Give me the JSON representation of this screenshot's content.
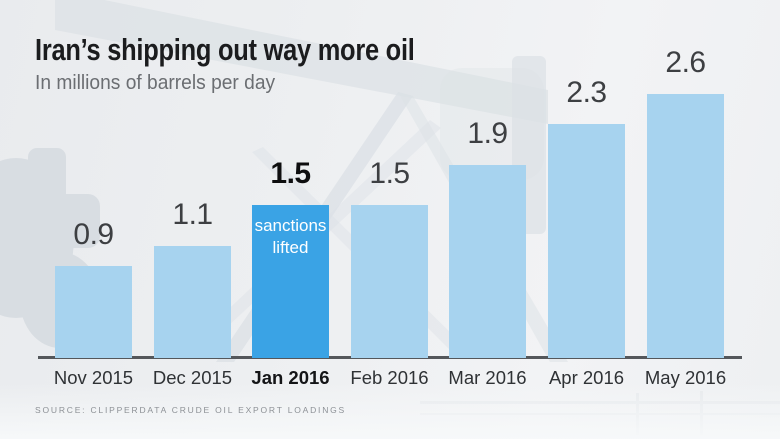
{
  "header": {
    "title": "Iran’s shipping out way more oil",
    "subtitle": "In millions of barrels per day"
  },
  "chart_data": {
    "type": "bar",
    "title": "Iran’s shipping out way more oil",
    "subtitle": "In millions of barrels per day",
    "categories": [
      "Nov 2015",
      "Dec 2015",
      "Jan 2016",
      "Feb 2016",
      "Mar 2016",
      "Apr 2016",
      "May 2016"
    ],
    "values": [
      0.9,
      1.1,
      1.5,
      1.5,
      1.9,
      2.3,
      2.6
    ],
    "highlight_index": 2,
    "annotation": {
      "index": 2,
      "lines": [
        "sanctions",
        "lifted"
      ]
    },
    "bar_color": "#a7d3ef",
    "highlight_color": "#3aa3e5",
    "xlabel": "",
    "ylabel": "millions of barrels per day",
    "ylim": [
      0,
      2.8
    ],
    "grid": false,
    "legend": false
  },
  "source": {
    "label": "SOURCE: CLIPPERDATA CRUDE OIL EXPORT LOADINGS"
  },
  "watermark": {
    "description": "oil pump jack silhouette"
  }
}
